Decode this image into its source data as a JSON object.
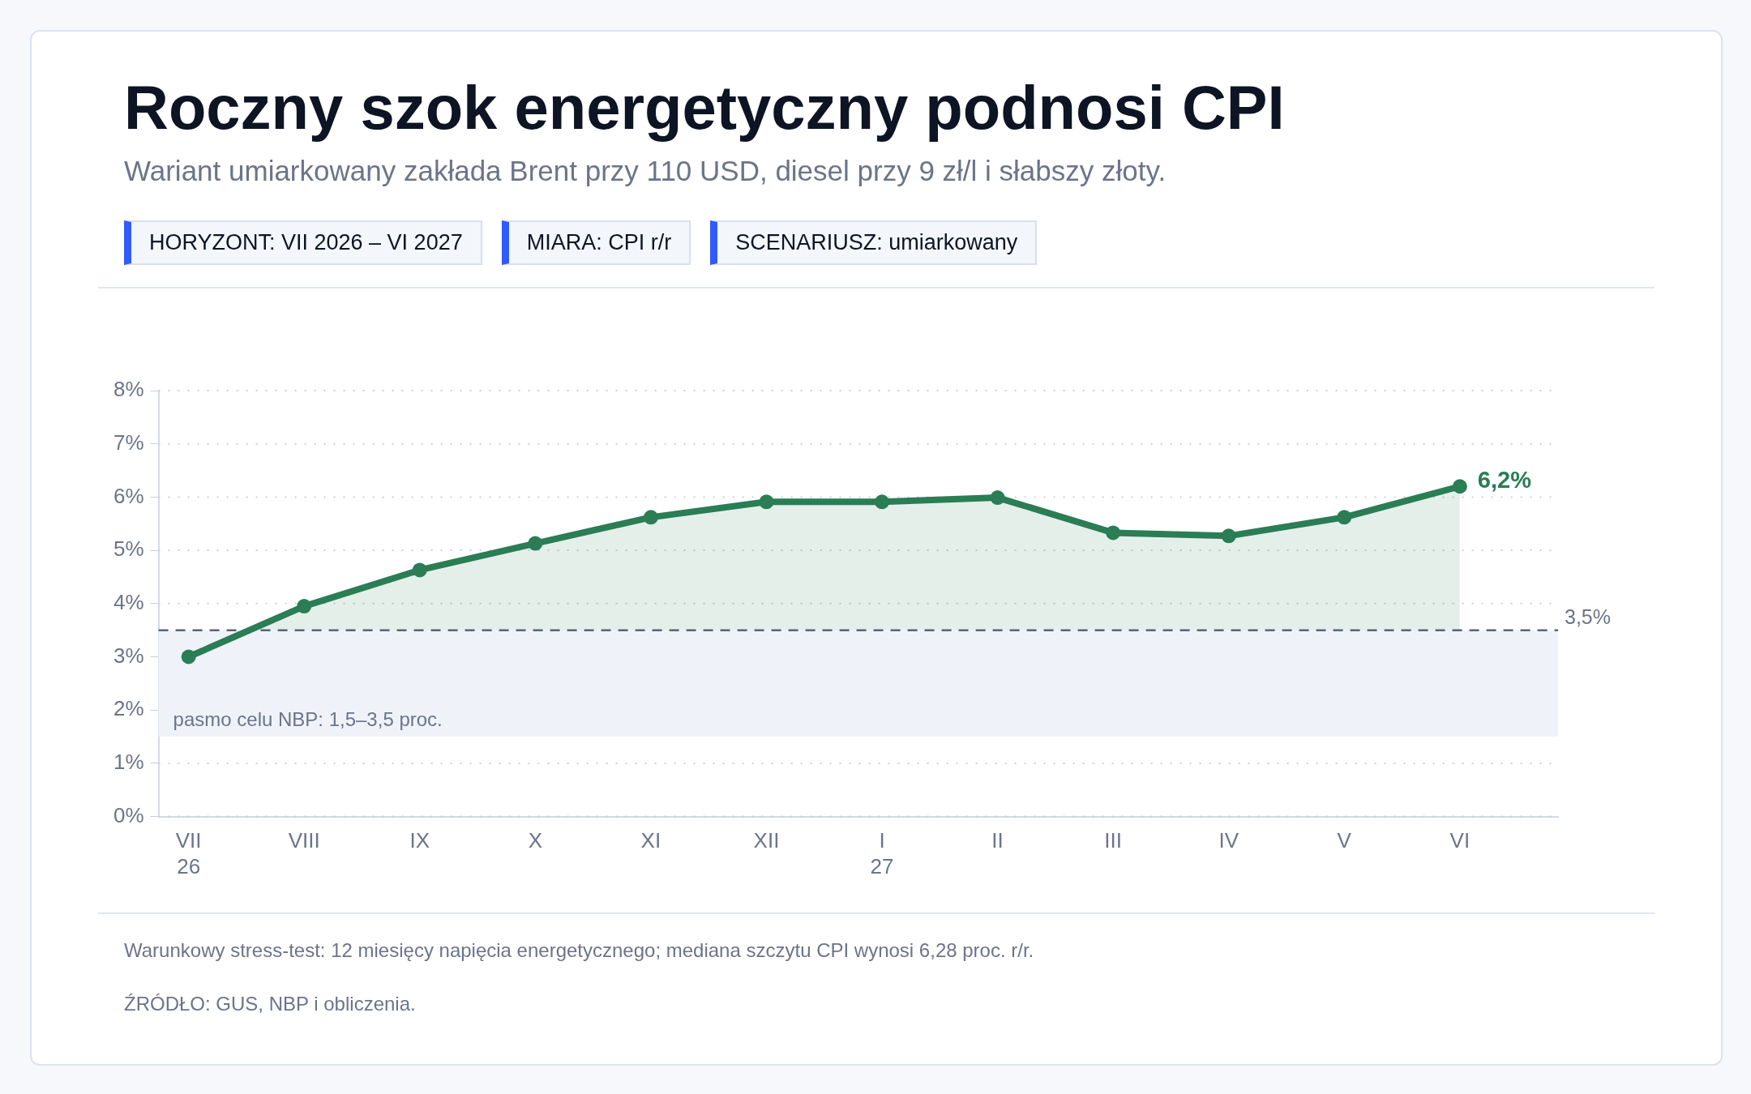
{
  "chart_data": {
    "type": "line",
    "title": "Roczny szok energetyczny podnosi CPI",
    "subtitle": "Wariant umiarkowany zakłada Brent przy 110 USD, diesel przy 9 zł/l i słabszy złoty.",
    "annotations": [
      "HORYZONT: VII 2026 – VI 2027",
      "MIARA: CPI r/r",
      "SCENARIUSZ: umiarkowany",
      "Warunkowy stress-test: 12 miesięcy napięcia energetycznego; mediana szczytu CPI wynosi 6,28 proc. r/r.",
      "ŹRÓDŁO: GUS, NBP i obliczenia."
    ],
    "categories": [
      "VII 26",
      "VIII",
      "IX",
      "X",
      "XI",
      "XII",
      "I 27",
      "II",
      "III",
      "IV",
      "V",
      "VI"
    ],
    "series": [
      {
        "color": "#2a7d55",
        "values": [
          3.0,
          3.95,
          4.63,
          5.13,
          5.62,
          5.91,
          5.91,
          5.99,
          5.33,
          5.27,
          5.62,
          6.2
        ],
        "value_labels": [
          null,
          null,
          null,
          null,
          null,
          null,
          null,
          null,
          null,
          null,
          null,
          "6,2%"
        ]
      }
    ],
    "ylim": [
      0,
      8
    ],
    "yticks": [
      {
        "value": 0,
        "label": "0%"
      },
      {
        "value": 1,
        "label": "1%"
      },
      {
        "value": 2,
        "label": "2%"
      },
      {
        "value": 3,
        "label": "3%"
      },
      {
        "value": 4,
        "label": "4%"
      },
      {
        "value": 5,
        "label": "5%"
      },
      {
        "value": 6,
        "label": "6%"
      },
      {
        "value": 7,
        "label": "7%"
      },
      {
        "value": 8,
        "label": "8%"
      }
    ],
    "grid": "y",
    "marker": "circle",
    "line_style": "solid",
    "legend": false,
    "ref_lines": [
      {
        "axis": "y",
        "value": 3.5,
        "label": "3,5%",
        "color": "#5b6577",
        "line_style": "dashed"
      }
    ],
    "bands": [
      {
        "axis": "y",
        "from": 1.5,
        "to": 3.5,
        "label": "pasmo celu NBP: 1,5–3,5 proc.",
        "color": "#eff3f9"
      }
    ]
  }
}
